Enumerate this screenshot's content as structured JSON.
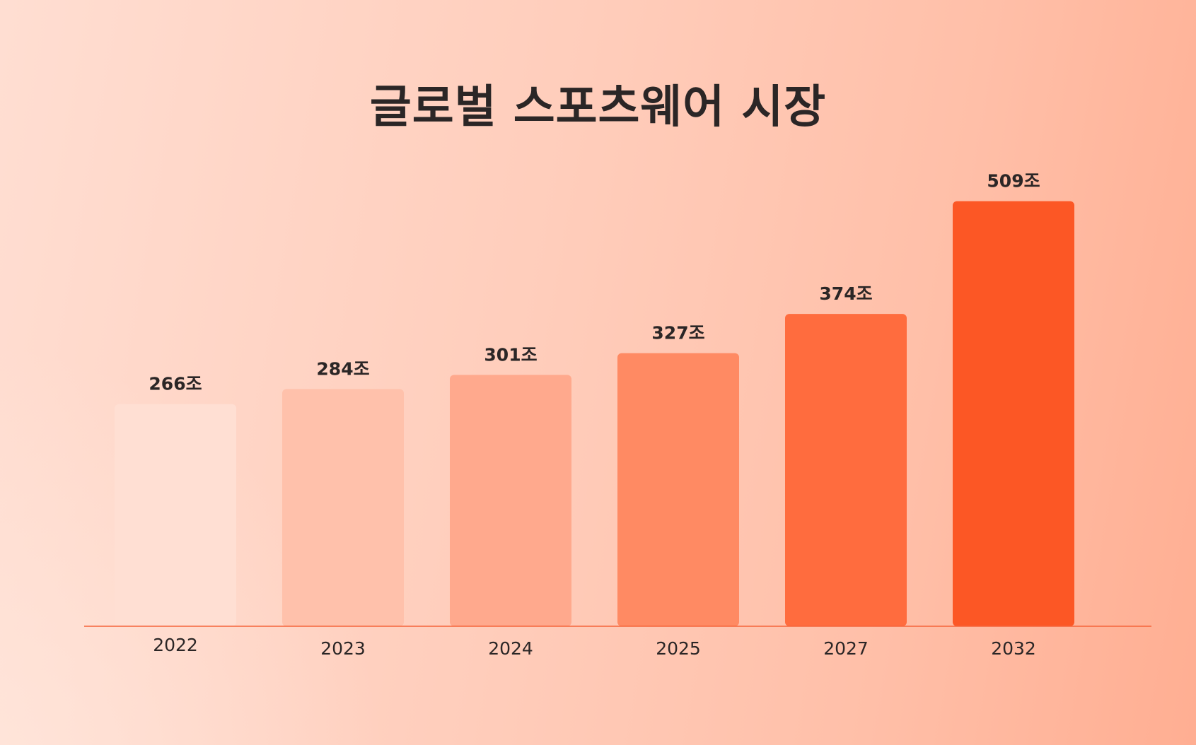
{
  "chart_data": {
    "type": "bar",
    "title": "글로벌 스포츠웨어 시장",
    "categories": [
      "2022",
      "2023",
      "2024",
      "2025",
      "2027",
      "2032"
    ],
    "values": [
      266,
      284,
      301,
      327,
      374,
      509
    ],
    "value_labels": [
      "266조",
      "284조",
      "301조",
      "327조",
      "374조",
      "509조"
    ],
    "value_unit": "조",
    "xlabel": "",
    "ylabel": "",
    "grid": false,
    "legend": "none",
    "colors": [
      "#ffdfd3",
      "#ffc1ab",
      "#ffa98d",
      "#ff8a63",
      "#ff6c3e",
      "#fc5725"
    ],
    "baseline_color": "#f5643a"
  }
}
